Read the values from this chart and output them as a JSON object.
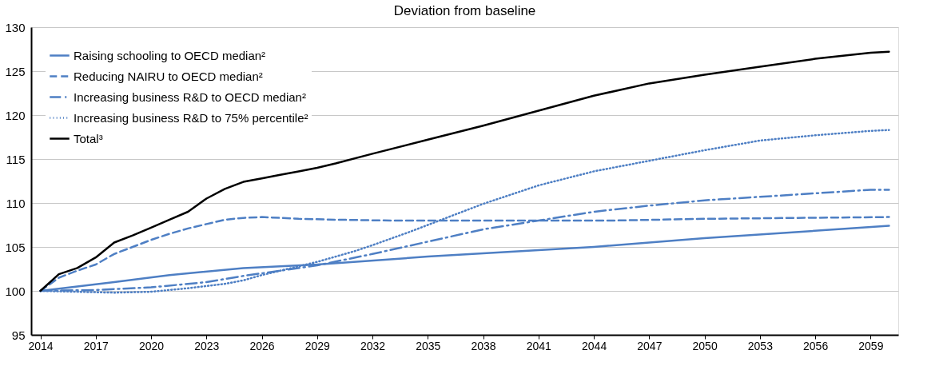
{
  "chart_data": {
    "type": "line",
    "title": "Deviation from baseline",
    "xlim": [
      2013.5,
      2060.5
    ],
    "xticks": [
      2014,
      2017,
      2020,
      2023,
      2026,
      2029,
      2032,
      2035,
      2038,
      2041,
      2044,
      2047,
      2050,
      2053,
      2056,
      2059
    ],
    "ylim": [
      95,
      130
    ],
    "yticks": [
      95,
      100,
      105,
      110,
      115,
      120,
      125,
      130
    ],
    "grid": "y",
    "legend": "top left",
    "marker": "none",
    "series": [
      {
        "name": "Raising schooling to OECD median²",
        "color": "#4e7fc4",
        "line_style": "solid",
        "x": [
          2014,
          2018,
          2021,
          2025,
          2029,
          2035,
          2044,
          2050,
          2060
        ],
        "values": [
          100,
          101.0,
          101.8,
          102.6,
          103.0,
          103.9,
          105.0,
          106.0,
          107.4
        ]
      },
      {
        "name": "Reducing NAIRU to OECD median²",
        "color": "#4e7fc4",
        "line_style": "dashed",
        "x": [
          2014,
          2015,
          2016,
          2017,
          2018,
          2019,
          2020,
          2021,
          2022,
          2023,
          2024,
          2025,
          2026,
          2027,
          2028,
          2030,
          2033,
          2045,
          2050,
          2055,
          2060
        ],
        "values": [
          100,
          101.5,
          102.3,
          103.0,
          104.2,
          105.0,
          105.8,
          106.5,
          107.1,
          107.6,
          108.1,
          108.3,
          108.4,
          108.3,
          108.2,
          108.1,
          108.0,
          108.0,
          108.2,
          108.3,
          108.4
        ]
      },
      {
        "name": "Increasing business R&D to OECD median²",
        "color": "#4e7fc4",
        "line_style": "dashdot",
        "x": [
          2014,
          2017,
          2020,
          2023,
          2025,
          2026,
          2029,
          2032,
          2035,
          2038,
          2041,
          2044,
          2047,
          2050,
          2053,
          2056,
          2059,
          2060
        ],
        "values": [
          100,
          100.1,
          100.4,
          101.0,
          101.7,
          102.0,
          102.9,
          104.2,
          105.6,
          107.0,
          108.0,
          109.0,
          109.7,
          110.3,
          110.7,
          111.1,
          111.5,
          111.5
        ]
      },
      {
        "name": "Increasing business R&D to 75% percentile²",
        "color": "#4e7fc4",
        "line_style": "dotted",
        "x": [
          2014,
          2016,
          2018,
          2020,
          2022,
          2024,
          2025,
          2026,
          2027,
          2029,
          2031,
          2032,
          2034,
          2035,
          2036,
          2038,
          2041,
          2044,
          2047,
          2050,
          2053,
          2056,
          2059,
          2060
        ],
        "values": [
          100,
          99.9,
          99.8,
          99.9,
          100.3,
          100.8,
          101.2,
          101.8,
          102.3,
          103.3,
          104.5,
          105.2,
          106.7,
          107.5,
          108.3,
          109.9,
          112.0,
          113.6,
          114.8,
          116.0,
          117.1,
          117.7,
          118.2,
          118.3
        ]
      },
      {
        "name": "Total³",
        "color": "#000000",
        "line_style": "solid",
        "x": [
          2014,
          2015,
          2016,
          2017,
          2018,
          2019,
          2020,
          2021,
          2022,
          2023,
          2024,
          2025,
          2026,
          2027,
          2028,
          2029,
          2030,
          2032,
          2035,
          2038,
          2041,
          2044,
          2047,
          2050,
          2053,
          2056,
          2059,
          2060
        ],
        "values": [
          100,
          101.9,
          102.6,
          103.8,
          105.5,
          106.3,
          107.2,
          108.1,
          109.0,
          110.5,
          111.6,
          112.4,
          112.8,
          113.2,
          113.6,
          114.0,
          114.5,
          115.6,
          117.2,
          118.8,
          120.5,
          122.2,
          123.6,
          124.6,
          125.5,
          126.4,
          127.1,
          127.2
        ]
      }
    ]
  }
}
